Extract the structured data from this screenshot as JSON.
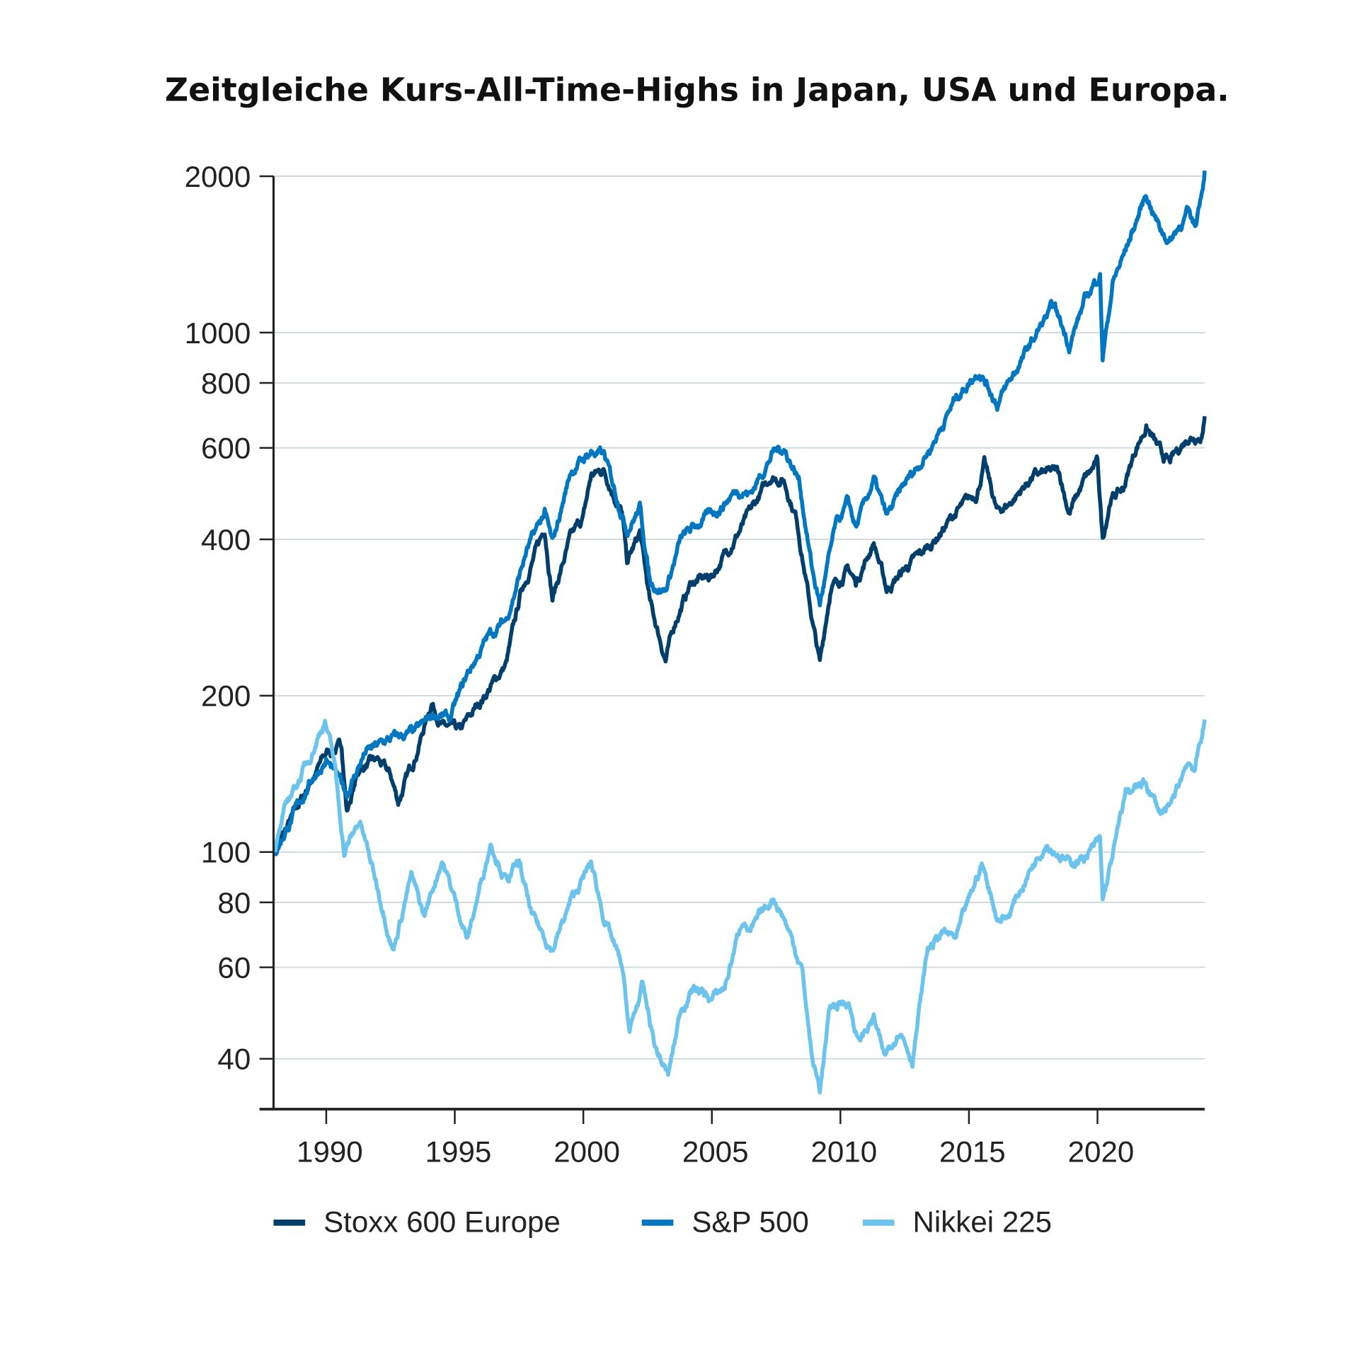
{
  "chart_data": {
    "type": "line",
    "title": "Zeitgleiche Kurs-All-Time-Highs in Japan, USA und Europa.",
    "xlabel": "",
    "ylabel": "",
    "y_scale": "log",
    "xlim": [
      1987.95,
      2024.17
    ],
    "ylim": [
      32,
      2000
    ],
    "grid": "horizontal",
    "legend_position": "bottom",
    "y_ticks": [
      40,
      60,
      80,
      100,
      200,
      400,
      600,
      800,
      1000,
      2000
    ],
    "y_tick_labels": [
      "40",
      "60",
      "80",
      "100",
      "200",
      "400",
      "600",
      "800",
      "1000",
      "2000"
    ],
    "x_ticks": [
      1990,
      1995,
      2000,
      2005,
      2010,
      2015,
      2020
    ],
    "x_tick_labels": [
      "1990",
      "1995",
      "2000",
      "2005",
      "2010",
      "2015",
      "2020"
    ],
    "series": [
      {
        "name": "Stoxx 600 Europe",
        "color": "#003f6b",
        "x": [
          1988,
          1989.5,
          1990.0,
          1990.6,
          1990.8,
          1991.3,
          1992,
          1992.5,
          1992.8,
          1993.5,
          1994.1,
          1994.5,
          1995.2,
          1996,
          1997,
          1997.6,
          1998.5,
          1998.8,
          1999.5,
          2000.0,
          2000.3,
          2000.8,
          2001.5,
          2001.7,
          2002.2,
          2002.6,
          2003.2,
          2003.6,
          2004.2,
          2005,
          2006,
          2006.5,
          2007.3,
          2007.8,
          2008.3,
          2008.9,
          2009.2,
          2009.6,
          2010.3,
          2010.6,
          2011.3,
          2011.8,
          2012.5,
          2013.5,
          2014.5,
          2015.3,
          2015.6,
          2016.1,
          2016.6,
          2017.5,
          2018.5,
          2018.9,
          2019.5,
          2020.0,
          2020.2,
          2020.5,
          2021,
          2021.5,
          2021.9,
          2022.5,
          2022.8,
          2023.5,
          2024.1,
          2024.17
        ],
        "y": [
          100,
          140,
          155,
          160,
          120,
          145,
          150,
          140,
          125,
          155,
          195,
          175,
          170,
          195,
          230,
          320,
          420,
          310,
          400,
          440,
          530,
          545,
          450,
          360,
          410,
          300,
          235,
          280,
          330,
          340,
          410,
          450,
          530,
          520,
          440,
          280,
          230,
          320,
          350,
          330,
          395,
          320,
          350,
          390,
          450,
          490,
          560,
          450,
          470,
          530,
          540,
          450,
          520,
          560,
          400,
          480,
          500,
          600,
          660,
          580,
          560,
          630,
          640,
          690
        ]
      },
      {
        "name": "S&P 500",
        "color": "#0077c0",
        "x": [
          1988,
          1989.5,
          1990,
          1990.8,
          1991.5,
          1992.5,
          1993.5,
          1994.2,
          1994.8,
          1995.5,
          1996.3,
          1997,
          1997.8,
          1998.5,
          1998.8,
          1999.5,
          2000.3,
          2000.8,
          2001.7,
          2002.2,
          2002.6,
          2003.2,
          2003.8,
          2004.5,
          2005.3,
          2006,
          2006.5,
          2007.4,
          2007.8,
          2008.4,
          2008.9,
          2009.2,
          2009.8,
          2010.3,
          2010.6,
          2011.3,
          2011.8,
          2012.5,
          2013.5,
          2014.5,
          2015.4,
          2015.8,
          2016.1,
          2016.8,
          2017.9,
          2018.3,
          2018.9,
          2019.5,
          2020.1,
          2020.2,
          2020.6,
          2021,
          2021.9,
          2022.4,
          2022.8,
          2023.5,
          2023.8,
          2024.17
        ],
        "y": [
          100,
          140,
          150,
          130,
          155,
          165,
          170,
          185,
          180,
          220,
          260,
          280,
          380,
          450,
          390,
          540,
          590,
          580,
          420,
          460,
          330,
          320,
          400,
          430,
          460,
          500,
          490,
          590,
          600,
          520,
          350,
          300,
          420,
          470,
          420,
          520,
          440,
          510,
          600,
          750,
          850,
          780,
          730,
          840,
          1050,
          1120,
          950,
          1150,
          1300,
          900,
          1250,
          1400,
          1850,
          1600,
          1500,
          1700,
          1600,
          2050
        ]
      },
      {
        "name": "Nikkei 225",
        "color": "#6cc4ec",
        "x": [
          1988,
          1988.5,
          1989.3,
          1989.95,
          1990.3,
          1990.7,
          1991.3,
          1992.3,
          1992.6,
          1993.3,
          1993.8,
          1994.5,
          1995.5,
          1996.4,
          1997,
          1997.5,
          1998,
          1998.8,
          1999.5,
          2000.3,
          2000.8,
          2001.5,
          2001.8,
          2002.3,
          2002.8,
          2003.3,
          2003.8,
          2004.3,
          2005,
          2005.5,
          2006.2,
          2006.5,
          2007.4,
          2007.8,
          2008.5,
          2008.9,
          2009.2,
          2009.6,
          2010.3,
          2010.7,
          2011.3,
          2011.7,
          2012.3,
          2012.8,
          2013.4,
          2014,
          2014.5,
          2015.5,
          2016.1,
          2016.5,
          2017.5,
          2018.0,
          2018.9,
          2019.5,
          2020.1,
          2020.2,
          2020.8,
          2021.1,
          2021.9,
          2022.4,
          2022.8,
          2023.5,
          2023.8,
          2024.17
        ],
        "y": [
          100,
          125,
          150,
          180,
          150,
          100,
          115,
          75,
          65,
          90,
          75,
          97,
          68,
          105,
          88,
          95,
          75,
          65,
          80,
          95,
          75,
          60,
          45,
          55,
          42,
          37,
          50,
          55,
          52,
          55,
          75,
          70,
          82,
          75,
          60,
          40,
          35,
          50,
          52,
          43,
          48,
          40,
          46,
          40,
          65,
          70,
          68,
          95,
          75,
          75,
          95,
          105,
          95,
          98,
          105,
          80,
          110,
          130,
          135,
          120,
          120,
          150,
          145,
          180
        ]
      }
    ]
  }
}
